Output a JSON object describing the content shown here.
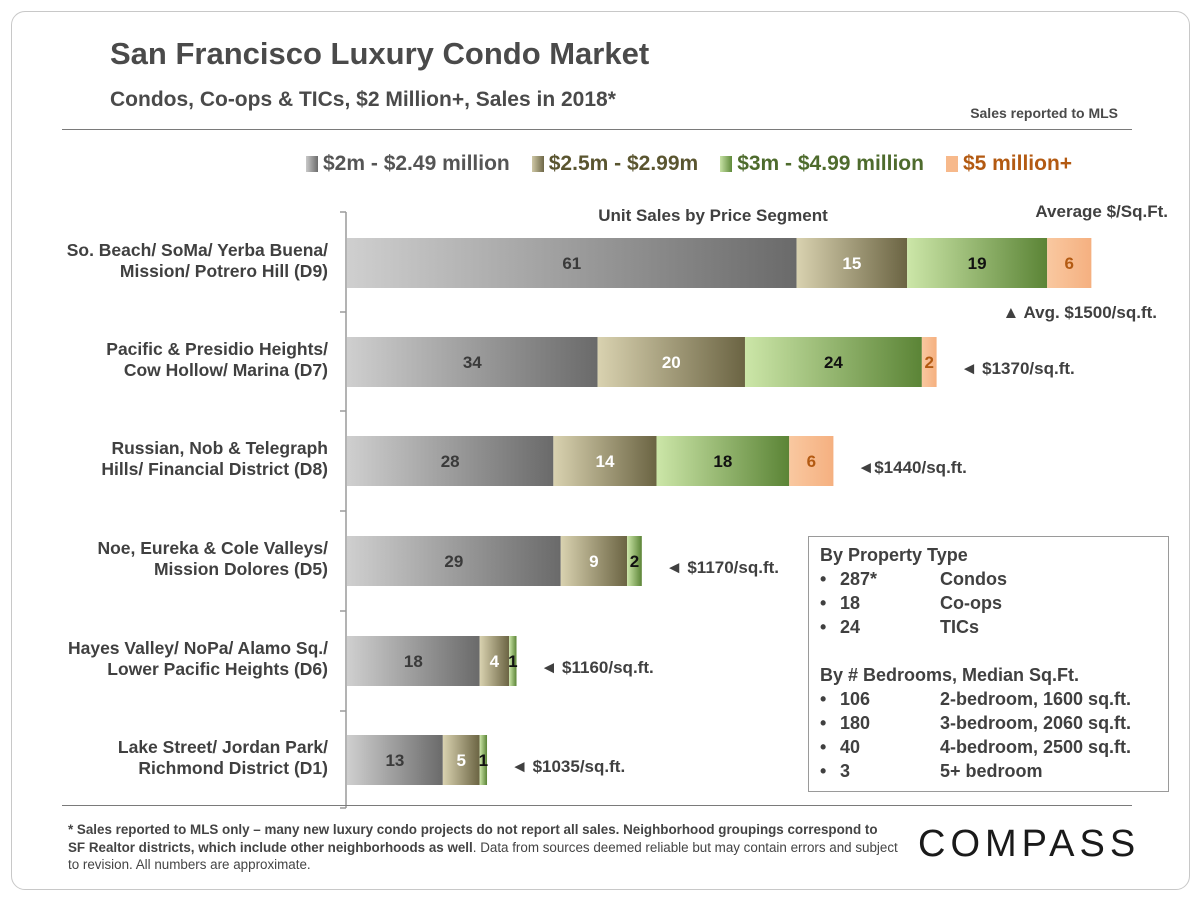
{
  "header": {
    "title": "San Francisco Luxury Condo Market",
    "subtitle": "Condos, Co-ops & TICs, $2 Million+,  Sales in 2018*",
    "source_note": "Sales reported to MLS"
  },
  "colors": {
    "seg1": "#8f8f8f",
    "seg2": "#a59e80",
    "seg3": "#8fb46a",
    "seg4": "#f7b98b",
    "legend1": "#555555",
    "legend2": "#5a5530",
    "legend3": "#4e6b2d",
    "legend4": "#b35a12"
  },
  "chart_data": {
    "type": "bar",
    "orientation": "horizontal",
    "stacked": true,
    "title": "Unit Sales by Price Segment",
    "right_header": "Average $/Sq.Ft.",
    "categories": [
      "So. Beach/ SoMa/ Yerba Buena/\nMission/ Potrero Hill (D9)",
      "Pacific & Presidio Heights/\nCow Hollow/ Marina (D7)",
      "Russian, Nob & Telegraph\nHills/ Financial District (D8)",
      "Noe, Eureka & Cole Valleys/\nMission Dolores (D5)",
      "Hayes Valley/ NoPa/ Alamo Sq./\nLower Pacific Heights (D6)",
      "Lake Street/ Jordan Park/\nRichmond District (D1)"
    ],
    "series": [
      {
        "name": "$2m - $2.49 million",
        "values": [
          61,
          34,
          28,
          29,
          18,
          13
        ]
      },
      {
        "name": "$2.5m - $2.99m",
        "values": [
          15,
          20,
          14,
          9,
          4,
          5
        ]
      },
      {
        "name": "$3m - $4.99 million",
        "values": [
          19,
          24,
          18,
          2,
          1,
          1
        ]
      },
      {
        "name": "$5 million+",
        "values": [
          6,
          2,
          6,
          0,
          0,
          0
        ]
      }
    ],
    "annotations": [
      "▲ Avg. $1500/sq.ft.",
      "◄ $1370/sq.ft.",
      "◄$1440/sq.ft.",
      "◄ $1170/sq.ft.",
      "◄ $1160/sq.ft.",
      "◄ $1035/sq.ft."
    ],
    "xlim": [
      0,
      106
    ],
    "grid": false,
    "legend": "top"
  },
  "info_box": {
    "section1_title": "By Property Type",
    "section1_rows": [
      {
        "bullet": "•",
        "value": "287*",
        "label": "Condos"
      },
      {
        "bullet": "•",
        "value": "18",
        "label": "Co-ops"
      },
      {
        "bullet": "•",
        "value": "24",
        "label": "TICs"
      }
    ],
    "section2_title": "By # Bedrooms, Median Sq.Ft.",
    "section2_rows": [
      {
        "bullet": "•",
        "value": "106",
        "label": "2-bedroom, 1600 sq.ft."
      },
      {
        "bullet": "•",
        "value": "180",
        "label": "3-bedroom, 2060 sq.ft."
      },
      {
        "bullet": "•",
        "value": "40",
        "label": "4-bedroom, 2500 sq.ft."
      },
      {
        "bullet": "•",
        "value": "3",
        "label": "5+ bedroom"
      }
    ]
  },
  "footer": {
    "note_part1": "* Sales reported to MLS only – many new luxury condo projects do not report all sales. Neighborhood groupings correspond to SF Realtor districts, which include other neighborhoods as well",
    "note_part2": ". Data from sources deemed reliable but may contain errors and subject to revision.  All numbers are approximate.",
    "brand": "COMPASS"
  }
}
